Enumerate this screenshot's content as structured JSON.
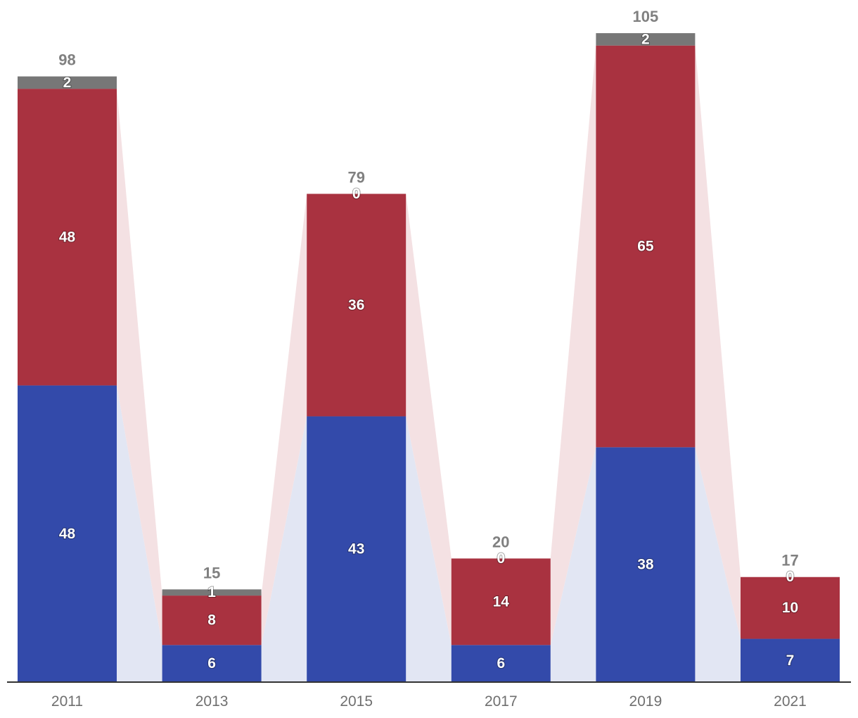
{
  "chart_data": {
    "type": "bar",
    "stacked": true,
    "title": "",
    "xlabel": "",
    "ylabel": "",
    "categories": [
      "2011",
      "2013",
      "2015",
      "2017",
      "2019",
      "2021"
    ],
    "series": [
      {
        "values": [
          48,
          6,
          43,
          6,
          38,
          7
        ],
        "color": "#334aaa"
      },
      {
        "values": [
          48,
          8,
          36,
          14,
          65,
          10
        ],
        "color": "#a93240"
      },
      {
        "values": [
          2,
          1,
          0,
          0,
          2,
          0
        ],
        "color": "#777777"
      }
    ],
    "totals": [
      98,
      15,
      79,
      20,
      105,
      17
    ],
    "connector_colors": [
      "#e2e6f3",
      "#f4e1e3"
    ],
    "grid": false,
    "legend": "none"
  }
}
